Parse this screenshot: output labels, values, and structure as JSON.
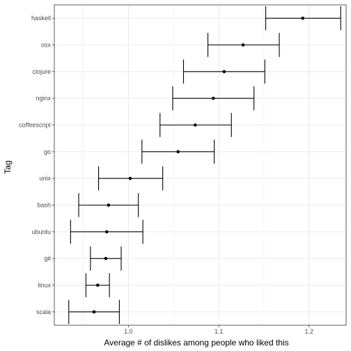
{
  "chart_data": {
    "type": "errorbar",
    "title": "",
    "xlabel": "Average # of dislikes among people who liked this",
    "ylabel": "Tag",
    "xlim": [
      0.918,
      1.241
    ],
    "x_ticks": [
      1.0,
      1.1,
      1.2
    ],
    "x_tick_labels": [
      "1.0",
      "1.1",
      "1.2"
    ],
    "grid": true,
    "colors": {
      "points": "#000000",
      "panel_border": "#333333",
      "grid": "#ebebeb"
    },
    "categories": [
      "haskell",
      "osx",
      "clojure",
      "nginx",
      "coffeescript",
      "go",
      "unix",
      "bash",
      "ubuntu",
      "git",
      "linux",
      "scala"
    ],
    "points": [
      {
        "tag": "haskell",
        "mean": 1.193,
        "low": 1.152,
        "high": 1.235
      },
      {
        "tag": "osx",
        "mean": 1.127,
        "low": 1.088,
        "high": 1.167
      },
      {
        "tag": "clojure",
        "mean": 1.106,
        "low": 1.061,
        "high": 1.151
      },
      {
        "tag": "nginx",
        "mean": 1.094,
        "low": 1.049,
        "high": 1.139
      },
      {
        "tag": "coffeescript",
        "mean": 1.074,
        "low": 1.035,
        "high": 1.114
      },
      {
        "tag": "go",
        "mean": 1.055,
        "low": 1.015,
        "high": 1.095
      },
      {
        "tag": "unix",
        "mean": 1.002,
        "low": 0.967,
        "high": 1.038
      },
      {
        "tag": "bash",
        "mean": 0.978,
        "low": 0.945,
        "high": 1.011
      },
      {
        "tag": "ubuntu",
        "mean": 0.976,
        "low": 0.936,
        "high": 1.016
      },
      {
        "tag": "git",
        "mean": 0.975,
        "low": 0.958,
        "high": 0.992
      },
      {
        "tag": "linux",
        "mean": 0.966,
        "low": 0.953,
        "high": 0.979
      },
      {
        "tag": "scala",
        "mean": 0.962,
        "low": 0.934,
        "high": 0.99
      }
    ]
  }
}
